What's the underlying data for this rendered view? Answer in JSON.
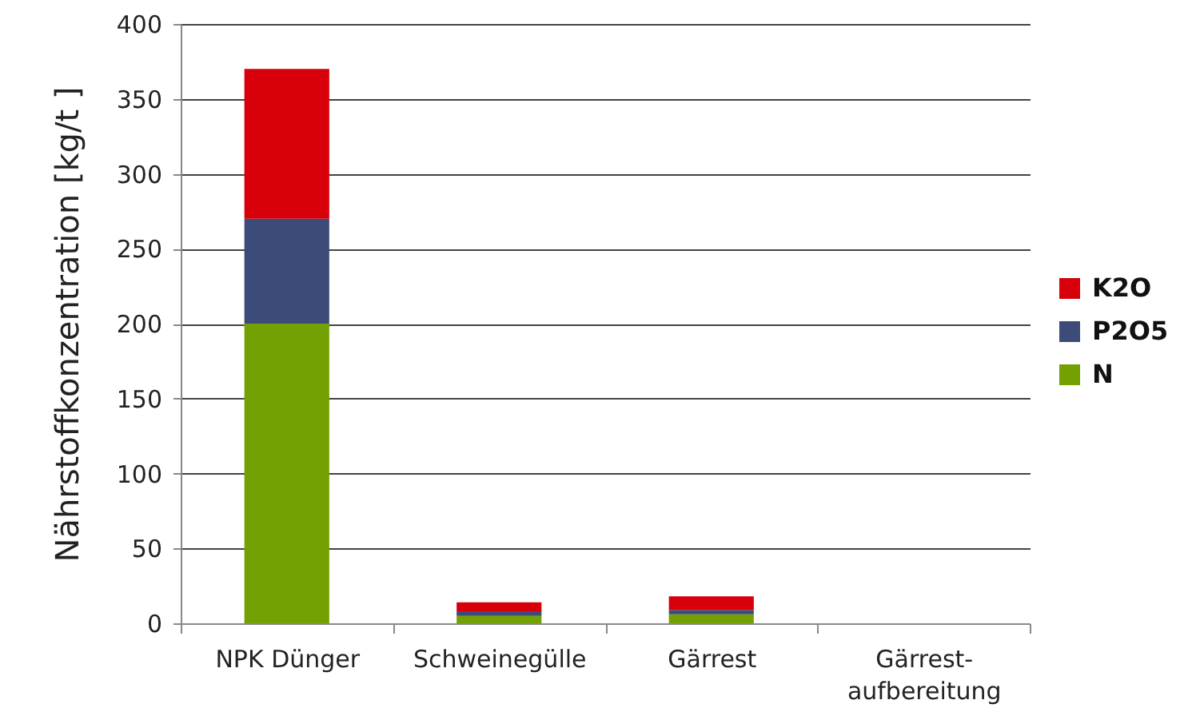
{
  "chart_data": {
    "type": "bar",
    "stacked": true,
    "ylabel": "Nährstoffkonzentration [kg/t ]",
    "categories": [
      "NPK Dünger",
      "Schweinegülle",
      "Gärrest",
      "Gärrest-\naufbereitung"
    ],
    "series": [
      {
        "name": "N",
        "color": "#73a003",
        "values": [
          200,
          5,
          6,
          null
        ]
      },
      {
        "name": "P2O5",
        "color": "#3c4b78",
        "values": [
          70,
          3,
          3,
          null
        ]
      },
      {
        "name": "K2O",
        "color": "#d7000a",
        "values": [
          100,
          6,
          9,
          null
        ]
      }
    ],
    "ylim": [
      0,
      400
    ],
    "yticks": [
      0,
      50,
      100,
      150,
      200,
      250,
      300,
      350,
      400
    ],
    "grid": "y",
    "legend": "right"
  }
}
